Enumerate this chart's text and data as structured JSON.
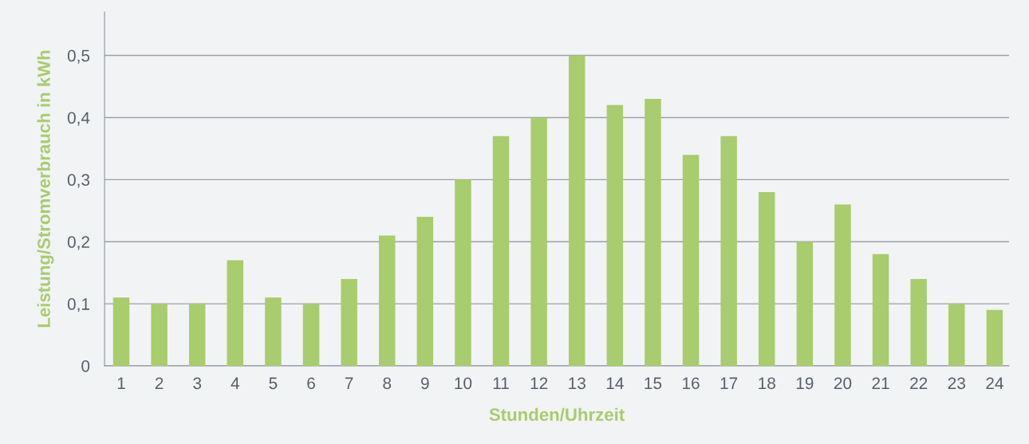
{
  "chart_data": {
    "type": "bar",
    "xlabel": "Stunden/Uhrzeit",
    "ylabel": "Leistung/Stromverbrauch in kWh",
    "categories": [
      "1",
      "2",
      "3",
      "4",
      "5",
      "6",
      "7",
      "8",
      "9",
      "10",
      "11",
      "12",
      "13",
      "14",
      "15",
      "16",
      "17",
      "18",
      "19",
      "20",
      "21",
      "22",
      "23",
      "24"
    ],
    "values": [
      0.11,
      0.1,
      0.1,
      0.17,
      0.11,
      0.1,
      0.14,
      0.21,
      0.24,
      0.3,
      0.37,
      0.4,
      0.5,
      0.42,
      0.43,
      0.34,
      0.37,
      0.28,
      0.2,
      0.26,
      0.18,
      0.14,
      0.1,
      0.09
    ],
    "color": "#a8cc6e",
    "ylim": [
      0,
      0.57
    ],
    "yticks": [
      0,
      {
        "value": 0.1,
        "label": "0,1"
      },
      {
        "value": 0.2,
        "label": "0,2"
      },
      {
        "value": 0.3,
        "label": "0,3"
      },
      {
        "value": 0.4,
        "label": "0,4"
      },
      {
        "value": 0.5,
        "label": "0,5"
      }
    ],
    "grid": "y",
    "legend": false
  }
}
